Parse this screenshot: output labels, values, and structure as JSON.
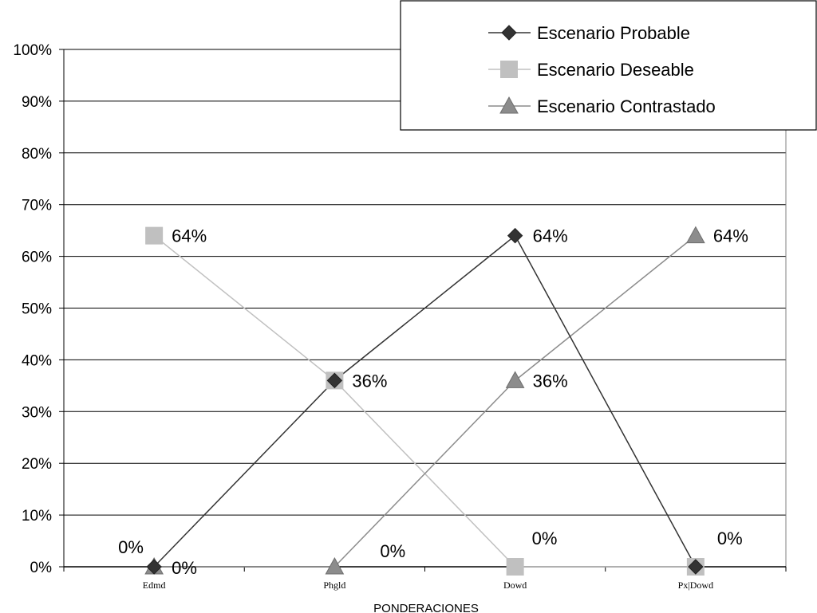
{
  "chart_data": {
    "type": "line",
    "title": "",
    "xlabel": "PONDERACIONES",
    "ylabel": "",
    "categories": [
      "Edmd",
      "Phgld",
      "Dowd",
      "Px|Dowd"
    ],
    "ylim": [
      0,
      100
    ],
    "y_ticks": [
      "0%",
      "10%",
      "20%",
      "30%",
      "40%",
      "50%",
      "60%",
      "70%",
      "80%",
      "90%",
      "100%"
    ],
    "grid": true,
    "legend_position": "top-right",
    "series": [
      {
        "name": "Escenario Probable",
        "values": [
          0,
          36,
          64,
          0
        ],
        "marker": "diamond",
        "color": "#333333",
        "labels": [
          "0%",
          "",
          "64%",
          ""
        ]
      },
      {
        "name": "Escenario Deseable",
        "values": [
          64,
          36,
          0,
          0
        ],
        "marker": "square",
        "color": "#c0c0c0",
        "labels": [
          "64%",
          "36%",
          "0%",
          "0%"
        ]
      },
      {
        "name": "Escenario Contrastado",
        "values": [
          0,
          0,
          36,
          64
        ],
        "marker": "triangle",
        "color": "#8c8c8c",
        "labels": [
          "0%",
          "0%",
          "36%",
          "64%"
        ]
      }
    ]
  }
}
